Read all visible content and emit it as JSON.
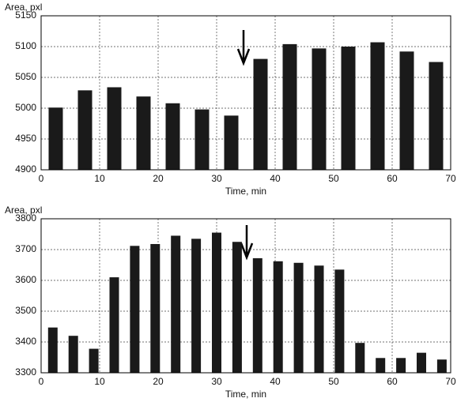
{
  "chart_data": [
    {
      "type": "bar",
      "y_label": "Area, pxl",
      "x_label": "Time, min",
      "x": [
        2.5,
        7.5,
        12.5,
        17.5,
        22.5,
        27.5,
        32.5,
        37.5,
        42.5,
        47.5,
        52.5,
        57.5,
        62.5,
        67.5
      ],
      "values": [
        5001,
        5029,
        5034,
        5019,
        5008,
        4998,
        4988,
        5080,
        5104,
        5097,
        5100,
        5107,
        5092,
        5075
      ],
      "color": "#1a1a1a",
      "xlim": [
        0,
        70
      ],
      "xticks": [
        0,
        10,
        20,
        30,
        40,
        50,
        60,
        70
      ],
      "ylim": [
        4900,
        5150
      ],
      "yticks": [
        4900,
        4950,
        5000,
        5050,
        5100,
        5150
      ],
      "grid": true
    },
    {
      "type": "bar",
      "y_label": "Area, pxl",
      "x_label": "Time, min",
      "x": [
        2,
        5.5,
        9,
        12.5,
        16,
        19.5,
        23,
        26.5,
        30,
        33.5,
        37,
        40.5,
        44,
        47.5,
        51,
        54.5,
        58,
        61.5,
        65,
        68.5
      ],
      "values": [
        3447,
        3420,
        3378,
        3610,
        3712,
        3718,
        3745,
        3735,
        3755,
        3725,
        3672,
        3662,
        3657,
        3648,
        3635,
        3397,
        3348,
        3348,
        3365,
        3343
      ],
      "color": "#1a1a1a",
      "xlim": [
        0,
        70
      ],
      "xticks": [
        0,
        10,
        20,
        30,
        40,
        50,
        60,
        70
      ],
      "ylim": [
        3300,
        3800
      ],
      "yticks": [
        3300,
        3400,
        3500,
        3600,
        3700,
        3800
      ],
      "grid": true
    }
  ]
}
